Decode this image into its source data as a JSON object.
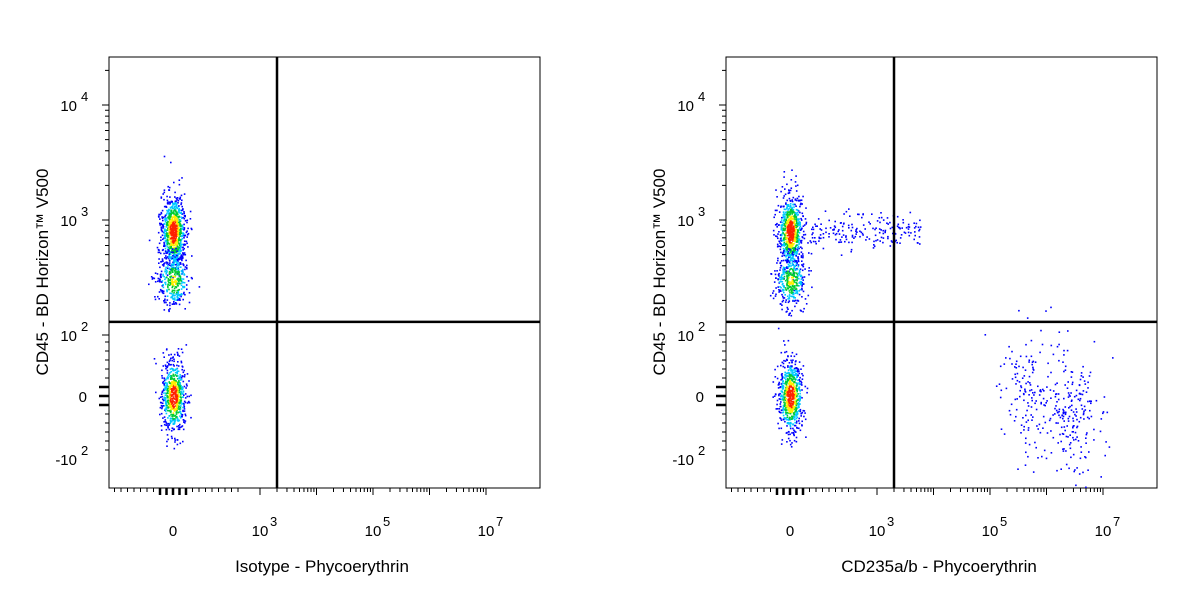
{
  "colors": {
    "low": "#0000ff",
    "mid": "#00c8ff",
    "green": "#00cc33",
    "yellow": "#ffee00",
    "high": "#ff2200",
    "axis": "#000000",
    "gate": "#000000"
  },
  "chart_data": [
    {
      "type": "scatter",
      "subtype": "density-dot-plot",
      "xlabel": "Isotype - Phycoerythrin",
      "ylabel": "CD45 - BD Horizon™ V500",
      "x_scale": "biexponential",
      "y_scale": "biexponential",
      "x_tick_labels": [
        {
          "value": "0",
          "label": "0",
          "exp": ""
        },
        {
          "value": "1000",
          "label": "10",
          "exp": "3"
        },
        {
          "value": "100000",
          "label": "10",
          "exp": "5"
        },
        {
          "value": "10000000",
          "label": "10",
          "exp": "7"
        }
      ],
      "y_tick_labels": [
        {
          "value": "10000",
          "label": "10",
          "exp": "4"
        },
        {
          "value": "1000",
          "label": "10",
          "exp": "3"
        },
        {
          "value": "100",
          "label": "10",
          "exp": "2"
        },
        {
          "value": "0",
          "label": "0",
          "exp": ""
        },
        {
          "value": "-100",
          "label": "-10",
          "exp": "2"
        }
      ],
      "quadrant_gate": {
        "x": 2000,
        "y": 130
      },
      "populations": [
        {
          "name": "",
          "x_center": 0,
          "y_center": 800,
          "n": 900,
          "density_peak": "high"
        },
        {
          "name": "",
          "x_center": 0,
          "y_center": 300,
          "n": 350,
          "density_peak": "medium"
        },
        {
          "name": "",
          "x_center": 0,
          "y_center": 0,
          "n": 700,
          "density_peak": "high"
        }
      ]
    },
    {
      "type": "scatter",
      "subtype": "density-dot-plot",
      "xlabel": "CD235a/b - Phycoerythrin",
      "ylabel": "CD45 - BD Horizon™ V500",
      "x_scale": "biexponential",
      "y_scale": "biexponential",
      "x_tick_labels": [
        {
          "value": "0",
          "label": "0",
          "exp": ""
        },
        {
          "value": "1000",
          "label": "10",
          "exp": "3"
        },
        {
          "value": "100000",
          "label": "10",
          "exp": "5"
        },
        {
          "value": "10000000",
          "label": "10",
          "exp": "7"
        }
      ],
      "y_tick_labels": [
        {
          "value": "10000",
          "label": "10",
          "exp": "4"
        },
        {
          "value": "1000",
          "label": "10",
          "exp": "3"
        },
        {
          "value": "100",
          "label": "10",
          "exp": "2"
        },
        {
          "value": "0",
          "label": "0",
          "exp": ""
        },
        {
          "value": "-100",
          "label": "-10",
          "exp": "2"
        }
      ],
      "quadrant_gate": {
        "x": 2000,
        "y": 130
      },
      "populations": [
        {
          "name": "",
          "x_center": 0,
          "y_center": 800,
          "n": 1000,
          "density_peak": "high"
        },
        {
          "name": "",
          "x_center": 0,
          "y_center": 300,
          "n": 350,
          "density_peak": "medium"
        },
        {
          "name": "",
          "x_center": 0,
          "y_center": 0,
          "n": 700,
          "density_peak": "high"
        },
        {
          "name": "",
          "x_center": 500000,
          "y_center": 10,
          "n": 150,
          "density_peak": "low"
        },
        {
          "name": "",
          "x_center": 3000000,
          "y_center": -30,
          "n": 200,
          "density_peak": "low"
        }
      ]
    }
  ]
}
